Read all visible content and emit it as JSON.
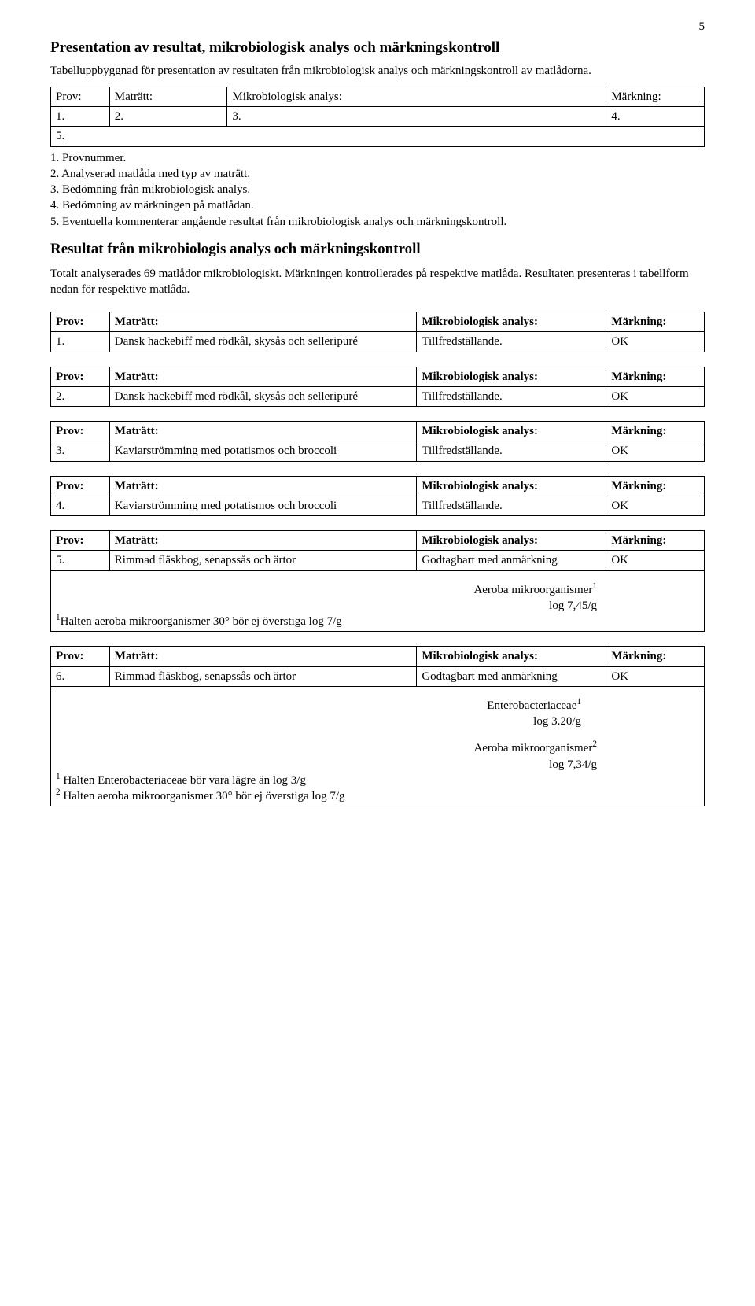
{
  "page_number": "5",
  "title": "Presentation av resultat, mikrobiologisk analys och märkningskontroll",
  "intro": "Tabelluppbyggnad för presentation av resultaten från mikrobiologisk analys och märkningskontroll av matlådorna.",
  "header_table": {
    "headers": [
      "Prov:",
      "Maträtt:",
      "Mikrobiologisk analys:",
      "Märkning:"
    ],
    "cells": [
      "1.",
      "2.",
      "3.",
      "4."
    ],
    "footer": "5."
  },
  "legend": [
    "1. Provnummer.",
    "2. Analyserad matlåda med typ av maträtt.",
    "3. Bedömning från mikrobiologisk analys.",
    "4. Bedömning av märkningen på matlådan.",
    "5. Eventuella kommenterar angående resultat från mikrobiologisk analys och märkningskontroll."
  ],
  "results_heading": "Resultat från mikrobiologis analys och märkningskontroll",
  "results_intro": "Totalt analyserades 69 matlådor mikrobiologiskt. Märkningen kontrollerades på respektive matlåda. Resultaten presenteras i tabellform nedan för respektive matlåda.",
  "col_labels": {
    "prov": "Prov:",
    "dish": "Maträtt:",
    "analys": "Mikrobiologisk analys:",
    "mark": "Märkning:"
  },
  "samples": [
    {
      "num": "1.",
      "dish": "Dansk hackebiff med rödkål, skysås och selleripuré",
      "analys": "Tillfredställande.",
      "mark": "OK"
    },
    {
      "num": "2.",
      "dish": "Dansk hackebiff med rödkål, skysås och selleripuré",
      "analys": "Tillfredställande.",
      "mark": "OK"
    },
    {
      "num": "3.",
      "dish": "Kaviarströmming med potatismos och broccoli",
      "analys": "Tillfredställande.",
      "mark": "OK"
    },
    {
      "num": "4.",
      "dish": "Kaviarströmming med potatismos och broccoli",
      "analys": "Tillfredställande.",
      "mark": "OK"
    }
  ],
  "sample5": {
    "num": "5.",
    "dish": "Rimmad fläskbog, senapssås och ärtor",
    "analys": "Godtagbart med anmärkning",
    "mark": "OK",
    "detail_prefix": "Aeroba mikroorganismer",
    "detail_sup": "1",
    "detail_value": "log 7,45/g",
    "footnote_sup": "1",
    "footnote": "Halten aeroba mikroorganismer 30° bör ej överstiga log 7/g"
  },
  "sample6": {
    "num": "6.",
    "dish": "Rimmad fläskbog, senapssås och ärtor",
    "analys": "Godtagbart med anmärkning",
    "mark": "OK",
    "detail1_prefix": "Enterobacteriaceae",
    "detail1_sup": "1",
    "detail1_value": "log 3.20/g",
    "detail2_prefix": "Aeroba mikroorganismer",
    "detail2_sup": "2",
    "detail2_value": "log 7,34/g",
    "footnote1_sup": "1",
    "footnote1": " Halten Enterobacteriaceae bör vara lägre än log 3/g",
    "footnote2_sup": "2",
    "footnote2": " Halten aeroba mikroorganismer 30° bör ej överstiga log 7/g"
  }
}
